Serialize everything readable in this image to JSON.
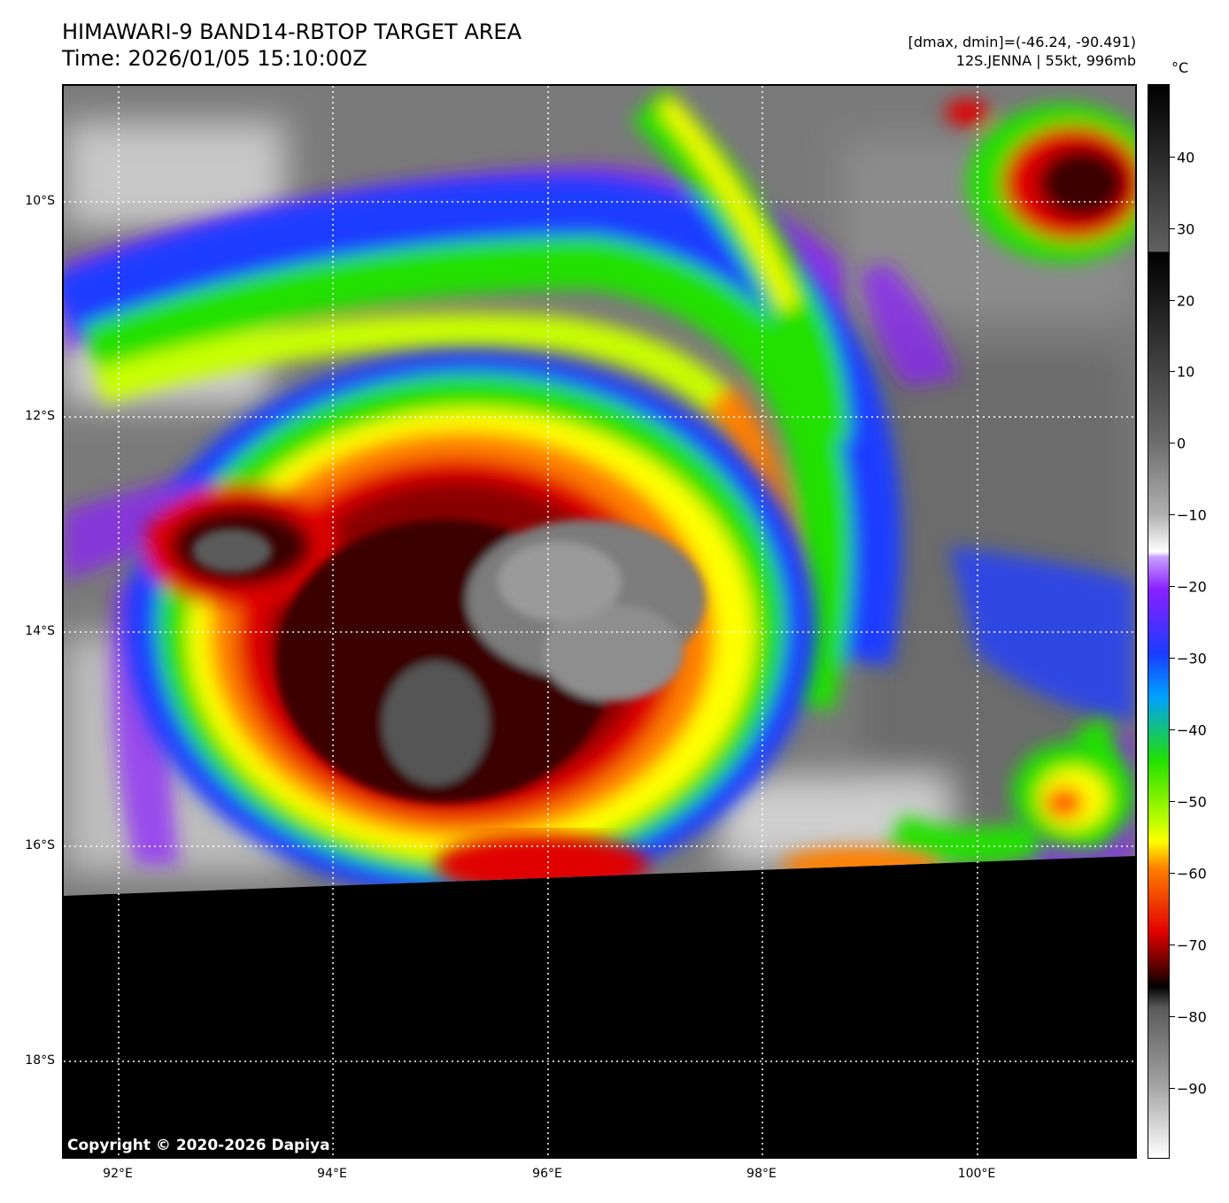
{
  "header": {
    "title_line1": "HIMAWARI-9 BAND14-RBTOP TARGET AREA",
    "title_line2": "Time: 2026/01/05 15:10:00Z",
    "range_info": "[dmax, dmin]=(-46.24, -90.491)",
    "storm_info": "12S.JENNA | 55kt, 996mb"
  },
  "map": {
    "lat_labels": [
      "10°S",
      "12°S",
      "14°S",
      "16°S",
      "18°S"
    ],
    "lon_labels": [
      "92°E",
      "94°E",
      "96°E",
      "98°E",
      "100°E"
    ],
    "copyright": "Copyright © 2020-2026 Dapiya"
  },
  "colorbar": {
    "unit": "°C",
    "tick_labels": [
      "40",
      "30",
      "20",
      "10",
      "0",
      "−10",
      "−20",
      "−30",
      "−40",
      "−50",
      "−60",
      "−70",
      "−80",
      "−90"
    ],
    "colors": {
      "black": "#000000",
      "white": "#ffffff",
      "purple": "#8a1fff",
      "blue": "#1a3cff",
      "green": "#22e000",
      "yellow": "#ffff00",
      "orange": "#ff8000",
      "red": "#e00000",
      "dark_red": "#3a0000"
    }
  }
}
